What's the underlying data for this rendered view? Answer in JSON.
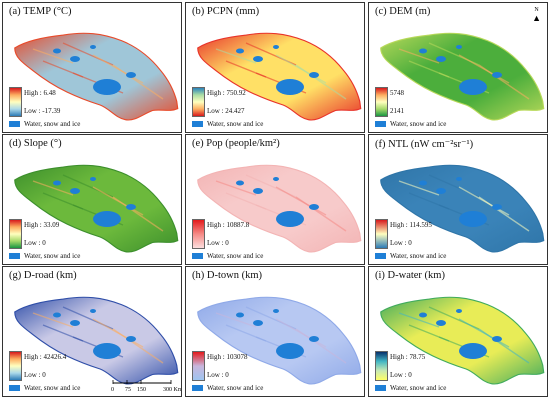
{
  "panels": [
    {
      "id": "a",
      "title": "(a) TEMP (°C)",
      "high": "High : 6.48",
      "low": "Low : -17.39",
      "water": "Water, snow and ice",
      "gradient": [
        "#d7191c",
        "#fdae61",
        "#ffffbf",
        "#abd9e9",
        "#2c7bb6"
      ],
      "map_base": "#9fc6d8",
      "map_edge": "#e84a2a"
    },
    {
      "id": "b",
      "title": "(b) PCPN (mm)",
      "high": "High : 750.92",
      "low": "Low : 24.427",
      "water": "Water, snow and ice",
      "gradient": [
        "#2b83ba",
        "#abdda4",
        "#ffffbf",
        "#fdae61",
        "#d7191c"
      ],
      "map_base": "#ffe066",
      "map_edge": "#e8332a"
    },
    {
      "id": "c",
      "title": "(c) DEM (m)",
      "high": "5748",
      "low": "2141",
      "water": "Water, snow and ice",
      "gradient": [
        "#d7191c",
        "#fdae61",
        "#ffffbf",
        "#a6d96a",
        "#1a9641"
      ],
      "map_base": "#4cae3c",
      "map_edge": "#b8d95a"
    },
    {
      "id": "d",
      "title": "(d) Slope (°)",
      "high": "High : 33.09",
      "low": "Low : 0",
      "water": "Water, snow and ice",
      "gradient": [
        "#d7191c",
        "#fdae61",
        "#ffffbf",
        "#a6d96a",
        "#1a9641"
      ],
      "map_base": "#6cb93c",
      "map_edge": "#3c8f2c"
    },
    {
      "id": "e",
      "title": "(e) Pop (people/km²)",
      "high": "High : 10887.8",
      "low": "Low : 0",
      "water": "Water, snow and ice",
      "gradient": [
        "#e31a1c",
        "#f58a86",
        "#fcdede"
      ],
      "map_base": "#f7caca",
      "map_edge": "#f3b4b4"
    },
    {
      "id": "f",
      "title": "(f) NTL (nW cm⁻²sr⁻¹)",
      "high": "High : 114.595",
      "low": "Low : 0",
      "water": "Water, snow and ice",
      "gradient": [
        "#d7191c",
        "#ffffbf",
        "#2c7bb6"
      ],
      "map_base": "#3a83b8",
      "map_edge": "#2f75a8"
    },
    {
      "id": "g",
      "title": "(g) D-road (km)",
      "high": "High : 42426.4",
      "low": "Low : 0",
      "water": "Water, snow and ice",
      "gradient": [
        "#d7191c",
        "#fdae61",
        "#ffffbf",
        "#abd9e9",
        "#2c7bb6"
      ],
      "map_base": "#c9c9e6",
      "map_edge": "#2f4ea8"
    },
    {
      "id": "h",
      "title": "(h) D-town (km)",
      "high": "High : 103078",
      "low": "Low : 0",
      "water": "Water, snow and ice",
      "gradient": [
        "#e31a1c",
        "#c8b6dc",
        "#9ec5f0"
      ],
      "map_base": "#b7c8f2",
      "map_edge": "#8fa9e8"
    },
    {
      "id": "i",
      "title": "(i) D-water (km)",
      "high": "High : 78.75",
      "low": "Low : 0",
      "water": "Water, snow and ice",
      "gradient": [
        "#08306b",
        "#41b6c4",
        "#c7e9b4",
        "#ffff66"
      ],
      "map_base": "#e8ec57",
      "map_edge": "#41ab5d"
    }
  ],
  "north_label": "N",
  "scale": {
    "labels": [
      "0",
      "75",
      "150",
      "300 Km"
    ]
  },
  "colors": {
    "water": "#1f7fd6",
    "border": "#333333"
  }
}
